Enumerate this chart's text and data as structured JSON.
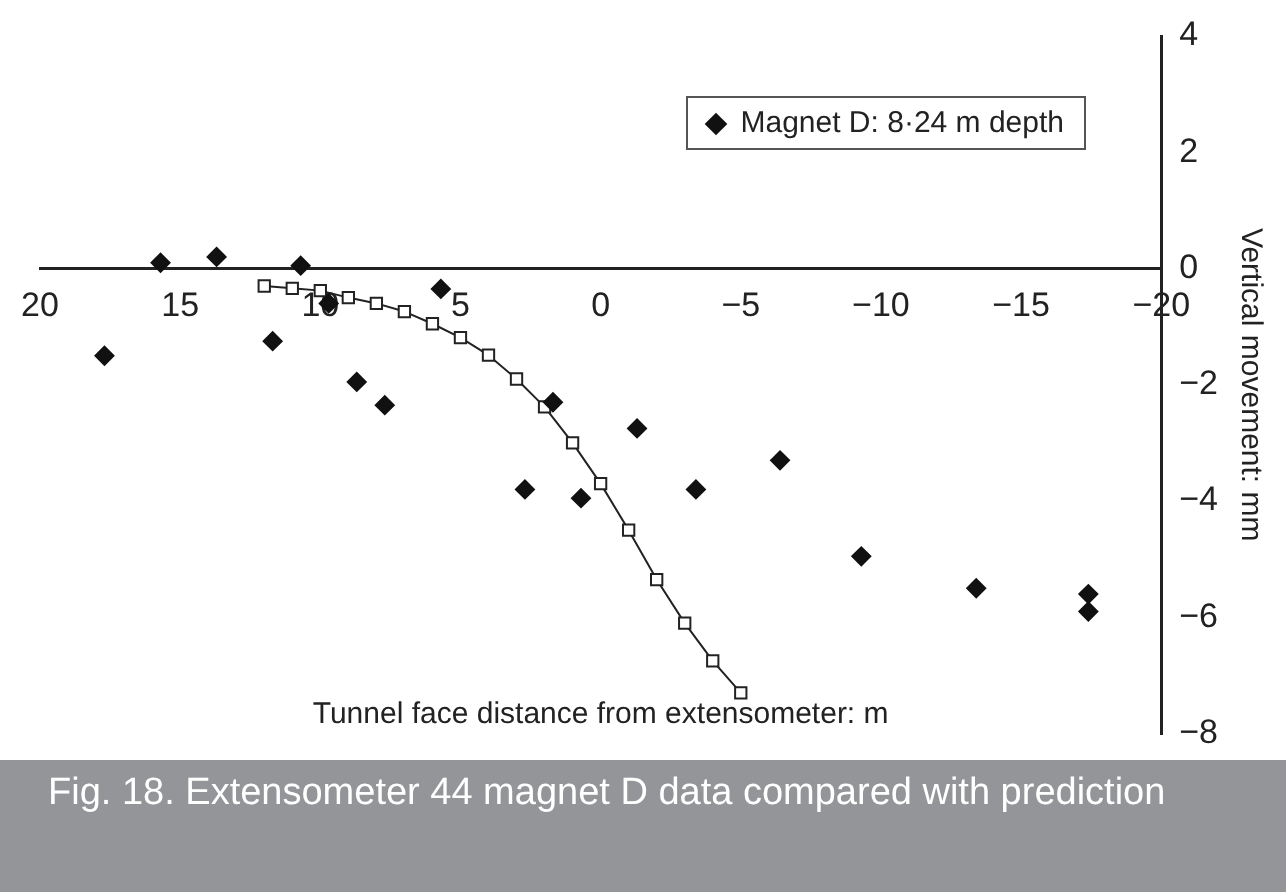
{
  "chart_data": {
    "type": "scatter",
    "xlabel": "Tunnel face distance from extensometer: m",
    "ylabel": "Vertical movement: mm",
    "xlim": [
      20,
      -20
    ],
    "xticks": [
      20,
      15,
      10,
      5,
      0,
      {
        "value": -5,
        "label": "−5"
      },
      {
        "value": -10,
        "label": "−10"
      },
      {
        "value": -15,
        "label": "−15"
      },
      {
        "value": -20,
        "label": "−20"
      }
    ],
    "ylim": [
      -8,
      4
    ],
    "yticks": [
      {
        "value": -8,
        "label": "−8"
      },
      {
        "value": -6,
        "label": "−6"
      },
      {
        "value": -4,
        "label": "−4"
      },
      {
        "value": -2,
        "label": "−2"
      },
      0,
      2,
      4
    ],
    "grid": false,
    "legend": "top right",
    "series": [
      {
        "name": "Magnet D: 8·24 m depth",
        "marker": "diamond",
        "color": "#111111",
        "x": [
          17.7,
          15.7,
          13.7,
          10.7,
          11.7,
          9.7,
          8.7,
          7.7,
          5.7,
          2.7,
          1.7,
          0.7,
          -1.3,
          -3.4,
          -6.4,
          -9.3,
          -13.4,
          -17.4,
          -17.4
        ],
        "values": [
          -1.5,
          0.1,
          0.2,
          0.05,
          -1.25,
          -0.6,
          -1.95,
          -2.35,
          -0.35,
          -3.8,
          -2.3,
          -3.95,
          -2.75,
          -3.8,
          -3.3,
          -4.95,
          -5.5,
          -5.6,
          -5.9
        ]
      },
      {
        "type": "line",
        "marker": "square",
        "line_style": "solid",
        "color": "#222222",
        "x": [
          12,
          11,
          10,
          9,
          8,
          7,
          6,
          5,
          4,
          3,
          2,
          1,
          0,
          -1,
          -2,
          -3,
          -4,
          -5
        ],
        "values": [
          -0.3,
          -0.34,
          -0.38,
          -0.5,
          -0.6,
          -0.74,
          -0.95,
          -1.19,
          -1.49,
          -1.9,
          -2.38,
          -3.0,
          -3.7,
          -4.5,
          -5.35,
          -6.1,
          -6.75,
          -7.3
        ]
      }
    ],
    "annotations": [
      "Fig. 18. Extensometer 44 magnet D data compared with prediction"
    ]
  }
}
